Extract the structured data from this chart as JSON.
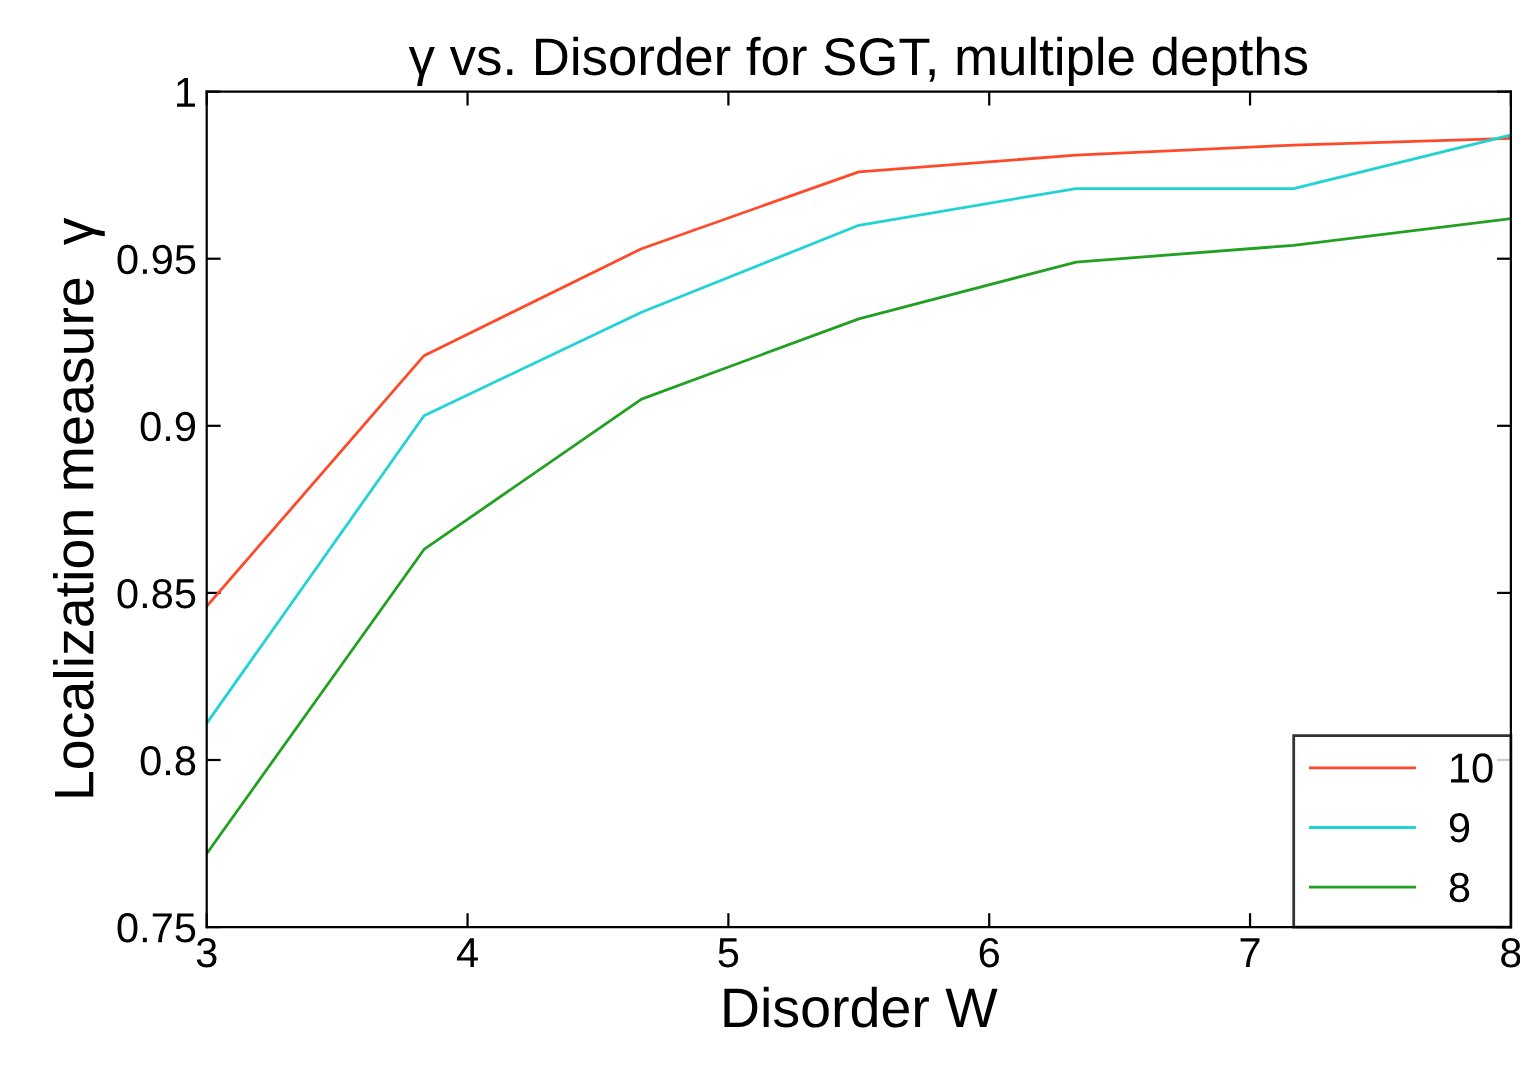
{
  "chart_data": {
    "type": "line",
    "title": "γ vs. Disorder for SGT, multiple depths",
    "xlabel": "Disorder W",
    "ylabel": "Localization measure  γ",
    "x": [
      3,
      3.833,
      4.667,
      5.5,
      6.333,
      7.167,
      8
    ],
    "series": [
      {
        "name": "10",
        "color": "#ff4a2a",
        "values": [
          0.846,
          0.921,
          0.953,
          0.976,
          0.981,
          0.984,
          0.986
        ]
      },
      {
        "name": "9",
        "color": "#22d3d3",
        "values": [
          0.811,
          0.903,
          0.934,
          0.96,
          0.971,
          0.971,
          0.987
        ]
      },
      {
        "name": "8",
        "color": "#22a022",
        "values": [
          0.772,
          0.863,
          0.908,
          0.932,
          0.949,
          0.954,
          0.962
        ]
      }
    ],
    "xlim": [
      3,
      8
    ],
    "xticks": [
      3,
      4,
      5,
      6,
      7,
      8
    ],
    "ylim": [
      0.75,
      1
    ],
    "yticks": [
      0.75,
      0.8,
      0.85,
      0.9,
      0.95,
      1
    ],
    "grid": false,
    "legend": "bottom right",
    "marker": "none",
    "line_style": "solid"
  }
}
